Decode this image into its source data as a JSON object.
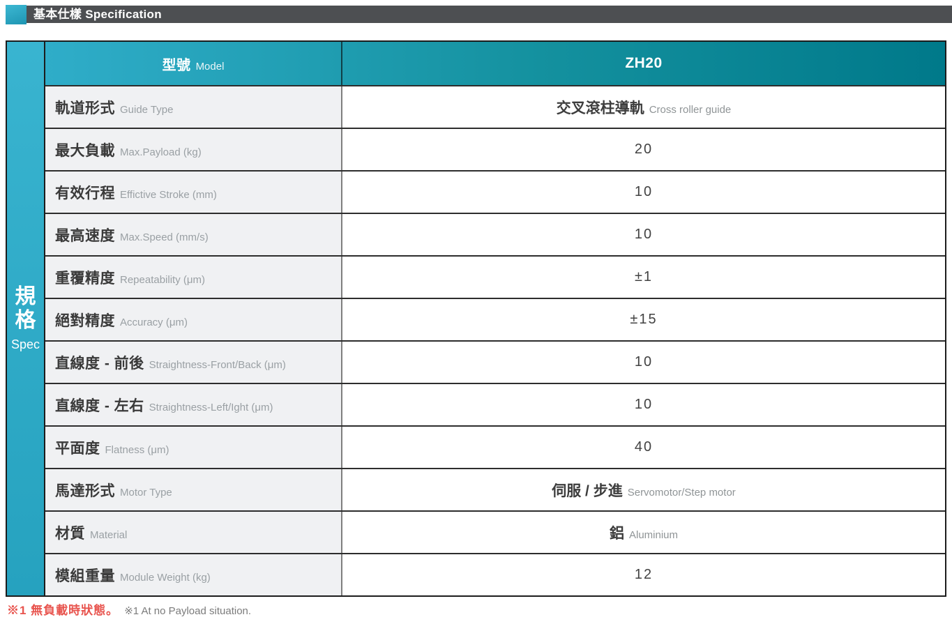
{
  "section_header": {
    "title": "基本仕樣 Specification"
  },
  "table": {
    "side_label": {
      "zh": "規格",
      "en": "Spec"
    },
    "header": {
      "label_zh": "型號",
      "label_en": "Model",
      "model_value": "ZH20"
    },
    "rows": [
      {
        "label_zh": "軌道形式",
        "label_en": "Guide Type",
        "value_main": "交叉滾柱導軌",
        "value_sub": "Cross roller guide"
      },
      {
        "label_zh": "最大負載",
        "label_en": "Max.Payload (kg)",
        "value_main": "20",
        "value_sub": ""
      },
      {
        "label_zh": "有效行程",
        "label_en": "Effictive Stroke (mm)",
        "value_main": "10",
        "value_sub": ""
      },
      {
        "label_zh": "最高速度",
        "label_en": "Max.Speed (mm/s)",
        "value_main": "10",
        "value_sub": ""
      },
      {
        "label_zh": "重覆精度",
        "label_en": "Repeatability  (μm)",
        "value_main": "±1",
        "value_sub": ""
      },
      {
        "label_zh": "絕對精度",
        "label_en": " Accuracy (μm)",
        "value_main": "±15",
        "value_sub": ""
      },
      {
        "label_zh": "直線度 - 前後",
        "label_en": "Straightness-Front/Back (μm)",
        "value_main": "10",
        "value_sub": ""
      },
      {
        "label_zh": "直線度 - 左右",
        "label_en": "Straightness-Left/Ight  (μm)",
        "value_main": "10",
        "value_sub": ""
      },
      {
        "label_zh": "平面度",
        "label_en": "Flatness (μm)",
        "value_main": "40",
        "value_sub": ""
      },
      {
        "label_zh": "馬達形式",
        "label_en": "Motor Type",
        "value_main": "伺服 / 步進",
        "value_sub": "Servomotor/Step motor"
      },
      {
        "label_zh": "材質",
        "label_en": "Material",
        "value_main": "鋁",
        "value_sub": "Aluminium"
      },
      {
        "label_zh": "模組重量",
        "label_en": "Module Weight (kg)",
        "value_main": "12",
        "value_sub": ""
      }
    ]
  },
  "footnote": {
    "zh": "※1 無負載時狀態。",
    "en": "※1 At no Payload situation."
  },
  "colors": {
    "accent_teal_light": "#2fadc9",
    "accent_teal_dark": "#00798a",
    "title_bar_gray": "#4d4f52",
    "label_cell_bg": "#f0f1f3",
    "note_red": "#e8544e"
  }
}
